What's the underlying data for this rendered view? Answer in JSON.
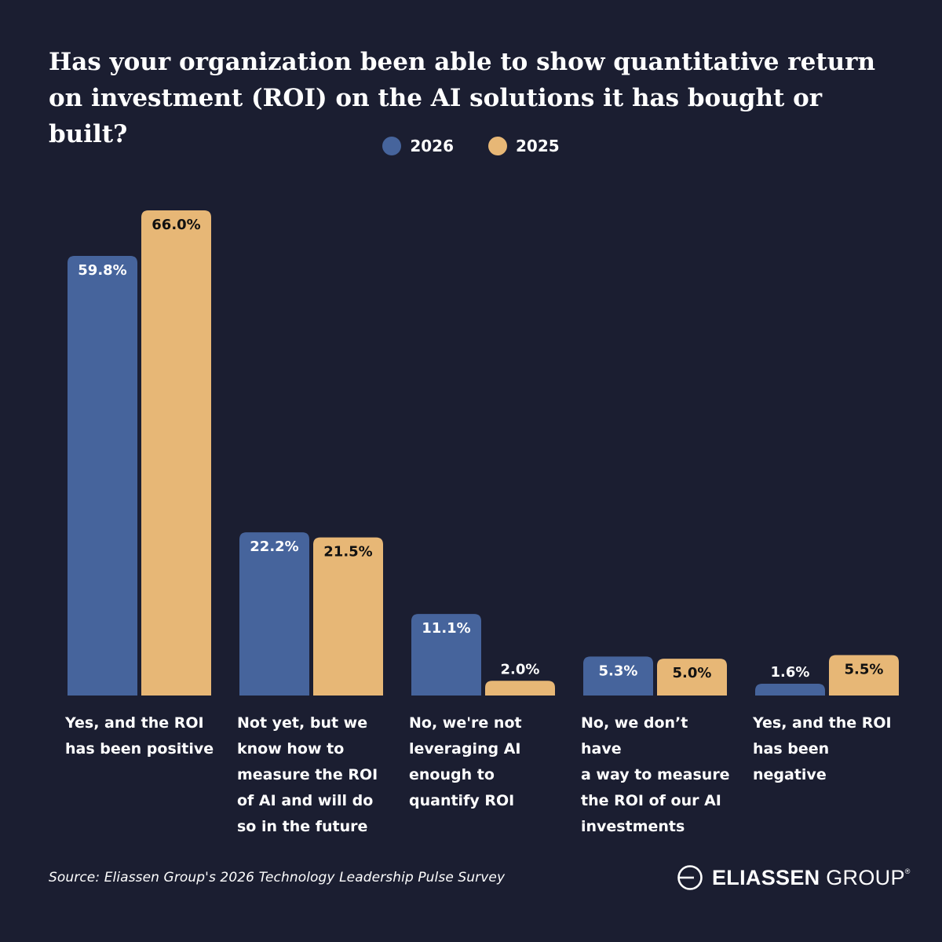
{
  "title": "Has your organization been able to show quantitative return on investment (ROI) on the AI solutions it has bought or built?",
  "legend": [
    {
      "label": "2026",
      "color": "#46649c"
    },
    {
      "label": "2025",
      "color": "#e7b776"
    }
  ],
  "chart_data": {
    "type": "bar",
    "title": "Has your organization been able to show quantitative return on investment (ROI) on the AI solutions it has bought or built?",
    "categories": [
      "Yes, and the ROI\nhas been positive",
      "Not yet, but we\nknow how to\nmeasure the ROI\nof AI and will do\nso in the future",
      "No, we're not\nleveraging AI\nenough to\nquantify ROI",
      "No, we don’t have\na way to measure\nthe ROI of our AI\ninvestments",
      "Yes, and the ROI\nhas been negative"
    ],
    "series": [
      {
        "name": "2026",
        "color": "#46649c",
        "values": [
          59.8,
          22.2,
          11.1,
          5.3,
          1.6
        ],
        "labels": [
          "59.8%",
          "22.2%",
          "11.1%",
          "5.3%",
          "1.6%"
        ],
        "label_color": "#ffffff"
      },
      {
        "name": "2025",
        "color": "#e7b776",
        "values": [
          66.0,
          21.5,
          2.0,
          5.0,
          5.5
        ],
        "labels": [
          "66.0%",
          "21.5%",
          "2.0%",
          "5.0%",
          "5.5%"
        ],
        "label_color": "#111111"
      }
    ],
    "xlabel": "",
    "ylabel": "",
    "ylim": [
      0,
      66
    ],
    "grid": false,
    "legend_position": "top-center"
  },
  "source": "Source: Eliassen Group's 2026 Technology Leadership Pulse Survey",
  "logo": {
    "icon": "eliassen-logo-mark",
    "strong": "ELIASSEN",
    "light": " GROUP",
    "mark": "®"
  },
  "colors": {
    "background": "#1b1e31",
    "text": "#ffffff"
  }
}
